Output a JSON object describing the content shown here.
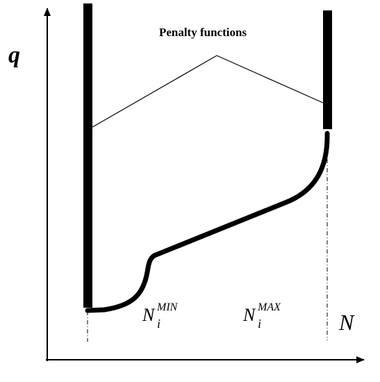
{
  "labels": {
    "q": "q",
    "n": "N",
    "penalty_title": "Penalty functions",
    "n_min": {
      "base": "N",
      "sub": "i",
      "sup": "MIN"
    },
    "n_max": {
      "base": "N",
      "sub": "i",
      "sup": "MAX"
    }
  }
}
